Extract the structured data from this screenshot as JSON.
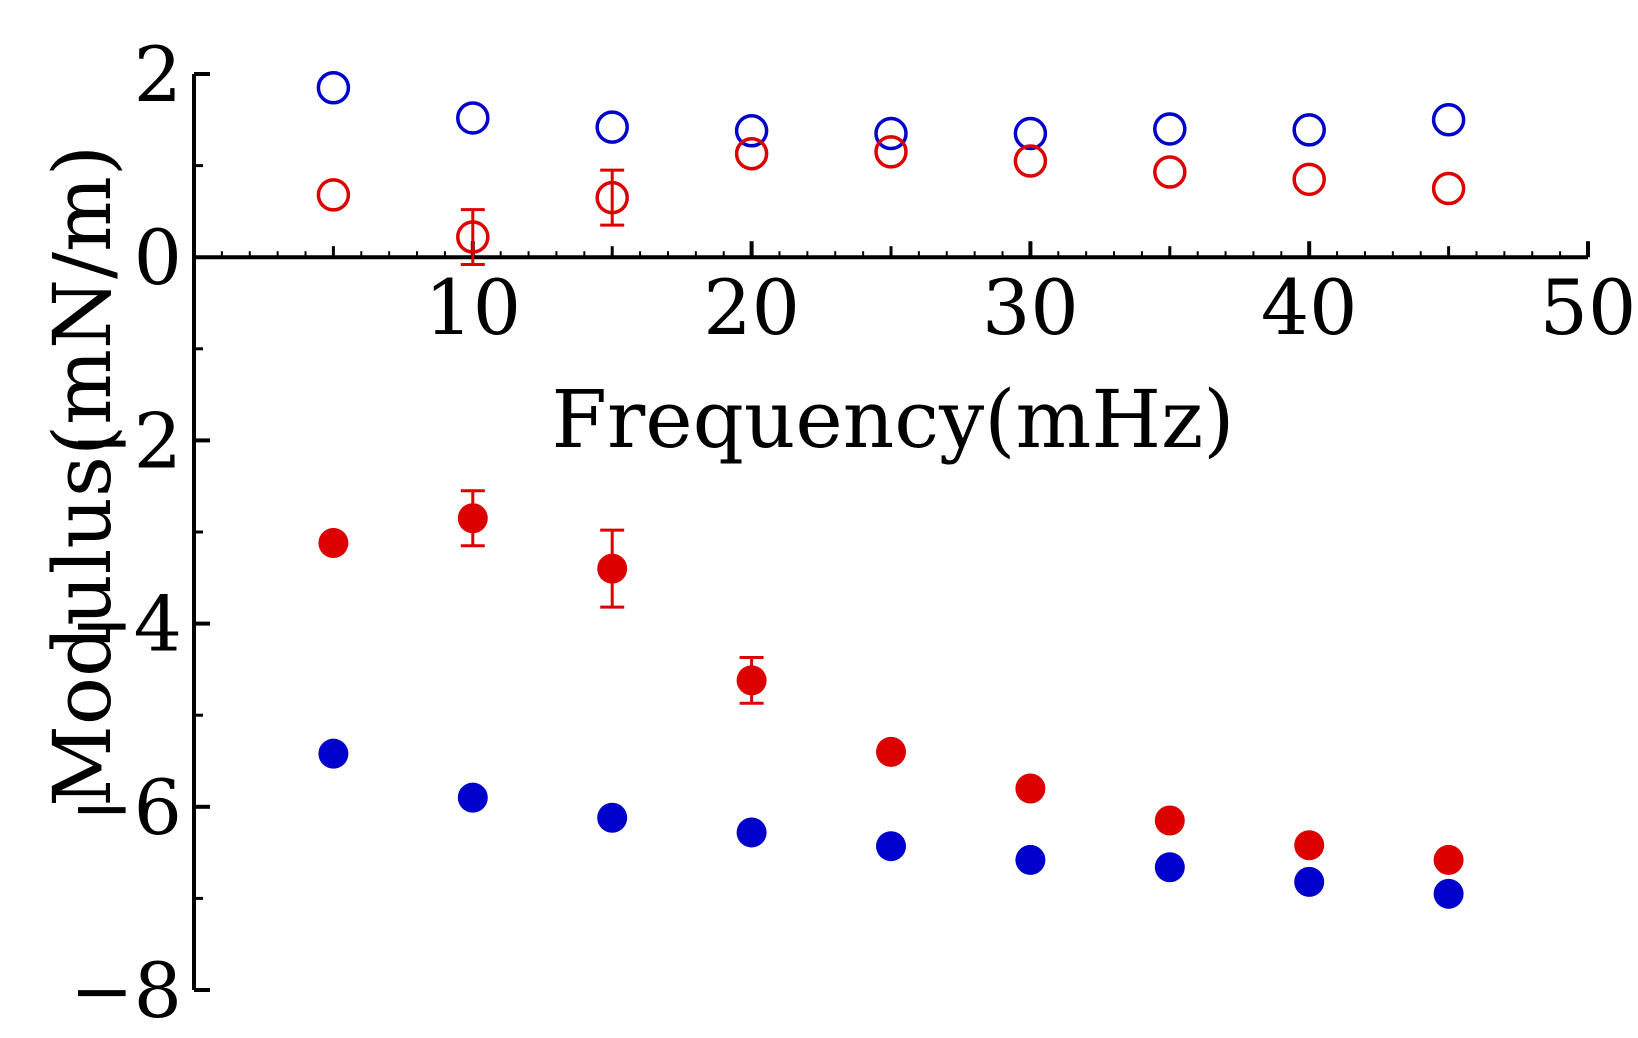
{
  "chart_data": {
    "type": "scatter",
    "xlabel": "Frequency(mHz)",
    "ylabel": "Modulus(mN/m)",
    "xlim": [
      0,
      50
    ],
    "ylim": [
      -8,
      2
    ],
    "x_ticks": [
      10,
      20,
      30,
      40,
      50
    ],
    "y_ticks": [
      2,
      0,
      -2,
      -4,
      -6,
      -8
    ],
    "x_tick_labels": [
      "10",
      "20",
      "30",
      "40",
      "50"
    ],
    "y_tick_labels": [
      "2",
      "0",
      "−2",
      "−4",
      "−6",
      "−8"
    ],
    "grid": false,
    "legend": "none",
    "series": [
      {
        "color": "#0000cc",
        "marker": "open-circle",
        "x": [
          5,
          10,
          15,
          20,
          25,
          30,
          35,
          40,
          45
        ],
        "y": [
          1.85,
          1.52,
          1.42,
          1.38,
          1.35,
          1.35,
          1.4,
          1.39,
          1.5
        ],
        "err": [
          0,
          0,
          0,
          0,
          0,
          0,
          0,
          0,
          0
        ]
      },
      {
        "color": "#dd0000",
        "marker": "open-circle",
        "x": [
          5,
          10,
          15,
          20,
          25,
          30,
          35,
          40,
          45
        ],
        "y": [
          0.68,
          0.22,
          0.65,
          1.13,
          1.15,
          1.05,
          0.93,
          0.85,
          0.75
        ],
        "err": [
          0,
          0.3,
          0.3,
          0,
          0,
          0,
          0,
          0,
          0
        ]
      },
      {
        "color": "#dd0000",
        "marker": "filled-circle",
        "x": [
          5,
          10,
          15,
          20,
          25,
          30,
          35,
          40,
          45
        ],
        "y": [
          -3.12,
          -2.85,
          -3.4,
          -4.62,
          -5.4,
          -5.8,
          -6.15,
          -6.42,
          -6.58
        ],
        "err": [
          0,
          0.3,
          0.42,
          0.25,
          0,
          0,
          0,
          0,
          0
        ]
      },
      {
        "color": "#0000cc",
        "marker": "filled-circle",
        "x": [
          5,
          10,
          15,
          20,
          25,
          30,
          35,
          40,
          45
        ],
        "y": [
          -5.42,
          -5.9,
          -6.12,
          -6.28,
          -6.43,
          -6.58,
          -6.66,
          -6.82,
          -6.95
        ],
        "err": [
          0,
          0,
          0,
          0,
          0,
          0,
          0,
          0,
          0
        ]
      }
    ]
  }
}
